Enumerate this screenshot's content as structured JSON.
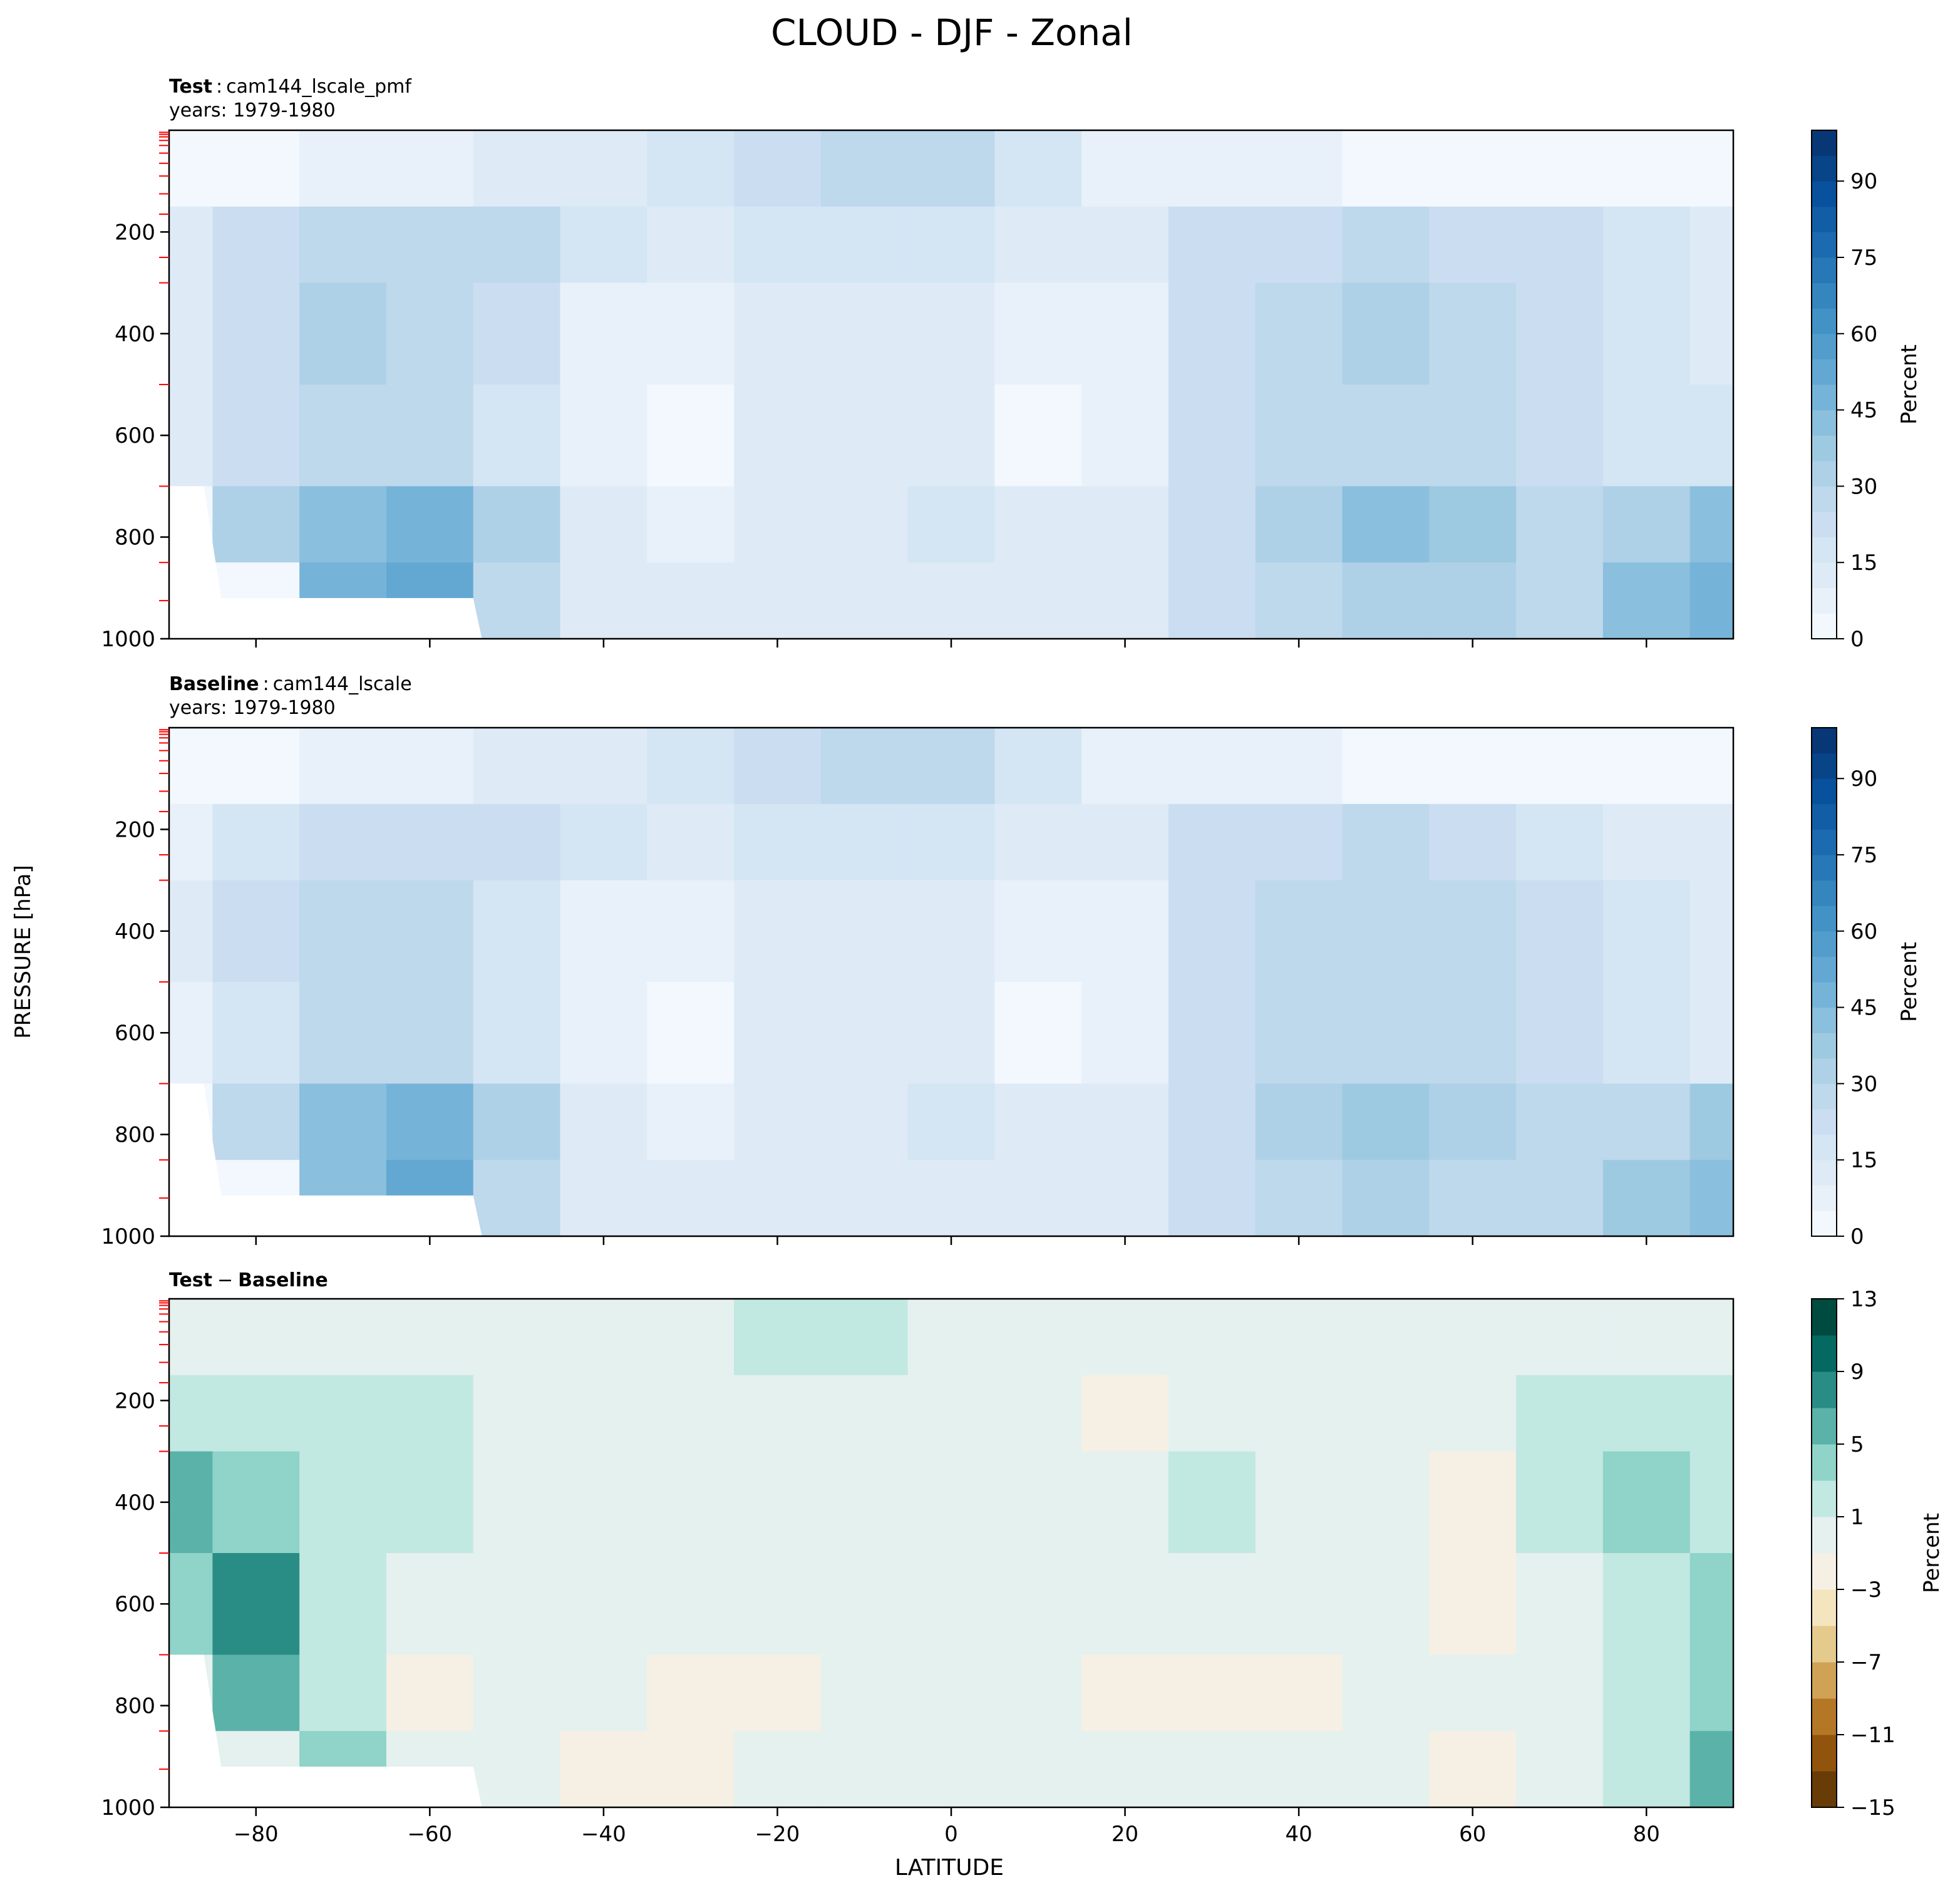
{
  "figure": {
    "title": "CLOUD - DJF - Zonal",
    "shared_ylabel": "PRESSURE [hPa]",
    "shared_xlabel": "LATITUDE"
  },
  "chart_data": [
    {
      "type": "heatmap",
      "panel": "test",
      "label_bold": "Test",
      "label_sep": ":",
      "case_name": "cam144_lscale_pmf",
      "years": "years: 1979-1980",
      "x": [
        -90,
        -80,
        -70,
        -60,
        -50,
        -40,
        -30,
        -20,
        -10,
        0,
        10,
        20,
        30,
        40,
        50,
        60,
        70,
        80,
        90
      ],
      "x_ticks": [
        -80,
        -60,
        -40,
        -20,
        0,
        20,
        40,
        60,
        80
      ],
      "y_ticks": [
        200,
        400,
        600,
        800,
        1000
      ],
      "xlim": [
        -90,
        90
      ],
      "ylim": [
        1000,
        0
      ],
      "values": [
        [
          0,
          0,
          5,
          8,
          10,
          12,
          15,
          22,
          28,
          26,
          18,
          8,
          5,
          5,
          0,
          0,
          0,
          0,
          0
        ],
        [
          10,
          20,
          25,
          26,
          25,
          15,
          12,
          15,
          18,
          15,
          10,
          12,
          20,
          24,
          26,
          24,
          20,
          15,
          12
        ],
        [
          12,
          22,
          30,
          28,
          20,
          8,
          5,
          10,
          12,
          10,
          5,
          8,
          22,
          28,
          30,
          28,
          22,
          18,
          14
        ],
        [
          10,
          22,
          28,
          28,
          18,
          5,
          3,
          10,
          12,
          10,
          3,
          8,
          20,
          26,
          28,
          26,
          22,
          18,
          16
        ],
        [
          0,
          30,
          42,
          46,
          30,
          12,
          8,
          10,
          12,
          18,
          12,
          14,
          24,
          34,
          40,
          36,
          28,
          32,
          40
        ],
        [
          0,
          0,
          45,
          50,
          26,
          12,
          10,
          10,
          10,
          12,
          10,
          12,
          20,
          28,
          32,
          30,
          28,
          40,
          48
        ]
      ],
      "levels": [
        0,
        5,
        10,
        15,
        20,
        25,
        30,
        35,
        40,
        45,
        50,
        55,
        60,
        65,
        70,
        75,
        80,
        85,
        90,
        95,
        100
      ],
      "colorbar_ticks": [
        0,
        15,
        30,
        45,
        60,
        75,
        90
      ],
      "colorbar_label": "Percent",
      "colormap": "Blues"
    },
    {
      "type": "heatmap",
      "panel": "baseline",
      "label_bold": "Baseline",
      "label_sep": ":",
      "case_name": "cam144_lscale",
      "years": "years: 1979-1980",
      "x": [
        -90,
        -80,
        -70,
        -60,
        -50,
        -40,
        -30,
        -20,
        -10,
        0,
        10,
        20,
        30,
        40,
        50,
        60,
        70,
        80,
        90
      ],
      "x_ticks": [
        -80,
        -60,
        -40,
        -20,
        0,
        20,
        40,
        60,
        80
      ],
      "y_ticks": [
        200,
        400,
        600,
        800,
        1000
      ],
      "xlim": [
        -90,
        90
      ],
      "ylim": [
        1000,
        0
      ],
      "values": [
        [
          0,
          2,
          5,
          8,
          10,
          12,
          15,
          22,
          28,
          26,
          18,
          8,
          5,
          5,
          2,
          0,
          0,
          0,
          0
        ],
        [
          8,
          16,
          22,
          24,
          22,
          15,
          12,
          15,
          18,
          15,
          10,
          12,
          20,
          24,
          25,
          22,
          18,
          14,
          10
        ],
        [
          10,
          20,
          28,
          26,
          18,
          8,
          5,
          10,
          12,
          10,
          5,
          8,
          22,
          26,
          28,
          26,
          20,
          16,
          12
        ],
        [
          8,
          18,
          26,
          26,
          16,
          5,
          3,
          10,
          12,
          10,
          3,
          8,
          20,
          26,
          28,
          26,
          20,
          16,
          14
        ],
        [
          0,
          26,
          40,
          46,
          30,
          12,
          8,
          10,
          12,
          18,
          12,
          14,
          24,
          34,
          38,
          34,
          26,
          28,
          36
        ],
        [
          0,
          0,
          42,
          50,
          26,
          12,
          10,
          10,
          10,
          12,
          10,
          12,
          20,
          28,
          30,
          28,
          26,
          36,
          42
        ]
      ],
      "levels": [
        0,
        5,
        10,
        15,
        20,
        25,
        30,
        35,
        40,
        45,
        50,
        55,
        60,
        65,
        70,
        75,
        80,
        85,
        90,
        95,
        100
      ],
      "colorbar_ticks": [
        0,
        15,
        30,
        45,
        60,
        75,
        90
      ],
      "colorbar_label": "Percent",
      "colormap": "Blues"
    },
    {
      "type": "heatmap",
      "panel": "diff",
      "label_bold_1": "Test",
      "label_minus": "−",
      "label_bold_2": "Baseline",
      "x": [
        -90,
        -80,
        -70,
        -60,
        -50,
        -40,
        -30,
        -20,
        -10,
        0,
        10,
        20,
        30,
        40,
        50,
        60,
        70,
        80,
        90
      ],
      "x_ticks": [
        -80,
        -60,
        -40,
        -20,
        0,
        20,
        40,
        60,
        80
      ],
      "y_ticks": [
        200,
        400,
        600,
        800,
        1000
      ],
      "xlim": [
        -90,
        90
      ],
      "ylim": [
        1000,
        0
      ],
      "values": [
        [
          0,
          0,
          0,
          0,
          0,
          0,
          0,
          1.5,
          1.5,
          0,
          0,
          0,
          0,
          0,
          0,
          0,
          0,
          0,
          0
        ],
        [
          2,
          2.5,
          2,
          2,
          0,
          0,
          0,
          0,
          0,
          0,
          0,
          -1.5,
          0,
          0,
          0,
          0,
          2,
          2.5,
          2
        ],
        [
          5,
          3,
          2,
          1.5,
          0,
          0,
          0,
          0,
          0,
          0,
          0,
          0,
          1.5,
          0,
          0,
          -1.5,
          2,
          3,
          2
        ],
        [
          3,
          8,
          2,
          0,
          0,
          0,
          0,
          0,
          0,
          0,
          0,
          0,
          0,
          0,
          0,
          -1.5,
          0,
          2,
          3
        ],
        [
          0,
          5,
          2,
          -1.5,
          0,
          0,
          -1.5,
          -1.5,
          0,
          0,
          0,
          -1.5,
          -1.5,
          -1.5,
          0,
          0,
          0,
          2,
          4
        ],
        [
          0,
          0,
          3,
          0,
          0,
          -1.5,
          -1.5,
          0,
          0,
          0,
          0,
          0,
          0,
          0,
          0,
          -1.5,
          0,
          2,
          5
        ]
      ],
      "levels": [
        -15,
        -13,
        -11,
        -9,
        -7,
        -5,
        -3,
        -1,
        1,
        3,
        5,
        7,
        9,
        11,
        13
      ],
      "colorbar_ticks": [
        -15,
        -11,
        -7,
        -3,
        1,
        5,
        9,
        13
      ],
      "colorbar_tick_labels": [
        "−15",
        "−11",
        "−7",
        "−3",
        "1",
        "5",
        "9",
        "13"
      ],
      "colorbar_label": "Percent",
      "colormap": "BrBG"
    }
  ]
}
